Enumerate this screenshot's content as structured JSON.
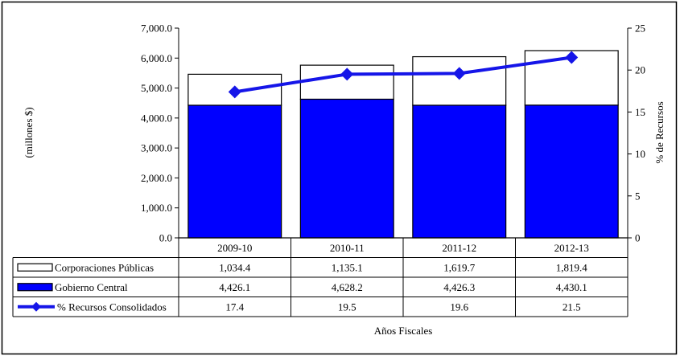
{
  "chart_data": {
    "type": "bar",
    "stacked": true,
    "categories": [
      "2009-10",
      "2010-11",
      "2011-12",
      "2012-13"
    ],
    "series": [
      {
        "name": "Gobierno Central",
        "kind": "bar",
        "axis": "left",
        "color": "#0000FF",
        "values": [
          4426.1,
          4628.2,
          4426.3,
          4430.1
        ],
        "labels": [
          "4,426.1",
          "4,628.2",
          "4,426.3",
          "4,430.1"
        ]
      },
      {
        "name": "Corporaciones Públicas",
        "kind": "bar",
        "axis": "left",
        "color": "#FFFFFF",
        "values": [
          1034.4,
          1135.1,
          1619.7,
          1819.4
        ],
        "labels": [
          "1,034.4",
          "1,135.1",
          "1,619.7",
          "1,819.4"
        ]
      },
      {
        "name": "% Recursos Consolidados",
        "kind": "line",
        "axis": "right",
        "color": "#1515E8",
        "values": [
          17.4,
          19.5,
          19.6,
          21.5
        ],
        "labels": [
          "17.4",
          "19.5",
          "19.6",
          "21.5"
        ]
      }
    ],
    "table_order": [
      1,
      0,
      2
    ],
    "ylabel": "(millones $)",
    "y2label": "% de Recursos",
    "xlabel": "Años Fiscales",
    "ylim": [
      0,
      7000
    ],
    "y2lim": [
      0,
      25
    ],
    "yticks": [
      "0.0",
      "1,000.0",
      "2,000.0",
      "3,000.0",
      "4,000.0",
      "5,000.0",
      "6,000.0",
      "7,000.0"
    ],
    "y2ticks": [
      "0",
      "5",
      "10",
      "15",
      "20",
      "25"
    ],
    "grid": false,
    "legend": "data-table"
  }
}
